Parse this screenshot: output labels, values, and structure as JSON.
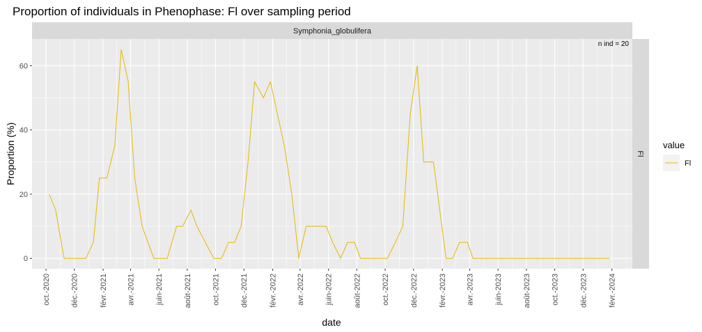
{
  "chart_data": {
    "type": "line",
    "title": "Proportion of individuals in Phenophase: Fl over sampling period",
    "facet_top": "Symphonia_globulifera",
    "facet_right": "Fl",
    "annotation": "n ind =  20",
    "xlabel": "date",
    "ylabel": "Proportion (%)",
    "xlim": [
      "2020-09-01",
      "2024-03-16"
    ],
    "ylim": [
      -3.2,
      68.3
    ],
    "y_ticks": [
      0,
      20,
      40,
      60
    ],
    "x_ticks": [
      {
        "date": "2020-10-01",
        "label": "oct.-2020"
      },
      {
        "date": "2020-12-01",
        "label": "déc.-2020"
      },
      {
        "date": "2021-02-01",
        "label": "févr.-2021"
      },
      {
        "date": "2021-04-01",
        "label": "avr.-2021"
      },
      {
        "date": "2021-06-01",
        "label": "juin-2021"
      },
      {
        "date": "2021-08-01",
        "label": "août-2021"
      },
      {
        "date": "2021-10-01",
        "label": "oct.-2021"
      },
      {
        "date": "2021-12-01",
        "label": "déc.-2021"
      },
      {
        "date": "2022-02-01",
        "label": "févr.-2022"
      },
      {
        "date": "2022-04-01",
        "label": "avr.-2022"
      },
      {
        "date": "2022-06-01",
        "label": "juin-2022"
      },
      {
        "date": "2022-08-01",
        "label": "août-2022"
      },
      {
        "date": "2022-10-01",
        "label": "oct.-2022"
      },
      {
        "date": "2022-12-01",
        "label": "déc.-2022"
      },
      {
        "date": "2023-02-01",
        "label": "févr.-2023"
      },
      {
        "date": "2023-04-01",
        "label": "avr.-2023"
      },
      {
        "date": "2023-06-01",
        "label": "juin-2023"
      },
      {
        "date": "2023-08-01",
        "label": "août-2023"
      },
      {
        "date": "2023-10-01",
        "label": "oct.-2023"
      },
      {
        "date": "2023-12-01",
        "label": "déc.-2023"
      },
      {
        "date": "2024-02-01",
        "label": "févr.-2024"
      }
    ],
    "grid": true,
    "legend": {
      "title": "value",
      "position": "right"
    },
    "series": [
      {
        "name": "Fl",
        "color": "#E6B800",
        "x": [
          "2020-10-08",
          "2020-10-22",
          "2020-11-09",
          "2020-11-25",
          "2020-12-11",
          "2020-12-26",
          "2021-01-11",
          "2021-01-24",
          "2021-02-09",
          "2021-02-26",
          "2021-03-12",
          "2021-03-27",
          "2021-04-10",
          "2021-04-26",
          "2021-05-21",
          "2021-06-19",
          "2021-07-09",
          "2021-07-22",
          "2021-08-09",
          "2021-08-22",
          "2021-09-27",
          "2021-10-14",
          "2021-10-29",
          "2021-11-11",
          "2021-11-25",
          "2021-12-10",
          "2021-12-24",
          "2022-01-12",
          "2022-01-27",
          "2022-02-26",
          "2022-03-14",
          "2022-03-29",
          "2022-04-14",
          "2022-05-27",
          "2022-06-10",
          "2022-06-27",
          "2022-07-12",
          "2022-07-27",
          "2022-08-09",
          "2022-09-07",
          "2022-09-24",
          "2022-10-06",
          "2022-10-23",
          "2022-11-08",
          "2022-11-24",
          "2022-12-09",
          "2022-12-23",
          "2023-01-13",
          "2023-02-09",
          "2023-02-23",
          "2023-03-10",
          "2023-03-27",
          "2023-04-08",
          "2023-04-25",
          "2023-05-09",
          "2023-05-27",
          "2023-06-09",
          "2023-06-25",
          "2023-07-09",
          "2023-07-26",
          "2023-08-09",
          "2023-08-27",
          "2023-09-09",
          "2023-09-27",
          "2023-10-10",
          "2023-10-27",
          "2023-11-10",
          "2023-11-26",
          "2023-12-08",
          "2023-12-24",
          "2024-01-11",
          "2024-01-27"
        ],
        "y": [
          20,
          15,
          0,
          0,
          0,
          0,
          5,
          25,
          25,
          35,
          65,
          55,
          25,
          10,
          0,
          0,
          10,
          10,
          15,
          10,
          0,
          0,
          5,
          5,
          10,
          30,
          55,
          50,
          55,
          35,
          20,
          0,
          10,
          10,
          5,
          0,
          5,
          5,
          0,
          0,
          0,
          0,
          5,
          10,
          45,
          60,
          30,
          30,
          0,
          0,
          5,
          5,
          0,
          0,
          0,
          0,
          0,
          0,
          0,
          0,
          0,
          0,
          0,
          0,
          0,
          0,
          0,
          0,
          0,
          0,
          0,
          0
        ]
      }
    ]
  }
}
